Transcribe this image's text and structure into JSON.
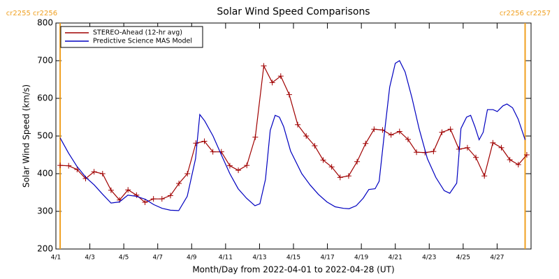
{
  "chart_data": {
    "type": "line",
    "title": "Solar Wind Speed Comparisons",
    "xlabel": "Month/Day from 2022-04-01 to 2022-04-28 (UT)",
    "ylabel": "Solar Wind Speed (km/s)",
    "xlim": [
      0,
      28
    ],
    "ylim": [
      200,
      800
    ],
    "xticks": [
      {
        "value": 0,
        "label": "4/1"
      },
      {
        "value": 2,
        "label": "4/3"
      },
      {
        "value": 4,
        "label": "4/5"
      },
      {
        "value": 6,
        "label": "4/7"
      },
      {
        "value": 8,
        "label": "4/9"
      },
      {
        "value": 10,
        "label": "4/11"
      },
      {
        "value": 12,
        "label": "4/13"
      },
      {
        "value": 14,
        "label": "4/15"
      },
      {
        "value": 16,
        "label": "4/17"
      },
      {
        "value": 18,
        "label": "4/19"
      },
      {
        "value": 20,
        "label": "4/21"
      },
      {
        "value": 22,
        "label": "4/23"
      },
      {
        "value": 24,
        "label": "4/25"
      },
      {
        "value": 26,
        "label": "4/27"
      }
    ],
    "yticks": [
      200,
      300,
      400,
      500,
      600,
      700,
      800
    ],
    "legend": "upper left",
    "markers": [
      {
        "x": 0.25,
        "label": "cr2255 cr2256",
        "color": "#f0a020"
      },
      {
        "x": 27.65,
        "label": "cr2256 cr2257",
        "color": "#f0a020"
      }
    ],
    "series": [
      {
        "name": "STEREO-Ahead (12-hr avg)",
        "color": "#a00000",
        "marker": "plus",
        "x": [
          0.25,
          0.75,
          1.25,
          1.75,
          2.25,
          2.75,
          3.25,
          3.75,
          4.25,
          4.75,
          5.25,
          5.75,
          6.25,
          6.75,
          7.25,
          7.75,
          8.25,
          8.75,
          9.25,
          9.75,
          10.25,
          10.75,
          11.25,
          11.75,
          12.25,
          12.75,
          13.25,
          13.75,
          14.25,
          14.75,
          15.25,
          15.75,
          16.25,
          16.75,
          17.25,
          17.75,
          18.25,
          18.75,
          19.25,
          19.75,
          20.25,
          20.75,
          21.25,
          21.75,
          22.25,
          22.75,
          23.25,
          23.75,
          24.25,
          24.75,
          25.25,
          25.75,
          26.25,
          26.75,
          27.25,
          27.75
        ],
        "values": [
          422,
          421,
          411,
          387,
          405,
          400,
          356,
          330,
          357,
          343,
          324,
          333,
          333,
          342,
          374,
          400,
          481,
          486,
          458,
          458,
          421,
          409,
          422,
          497,
          686,
          642,
          659,
          610,
          530,
          500,
          474,
          436,
          418,
          390,
          394,
          432,
          480,
          518,
          516,
          503,
          512,
          491,
          457,
          456,
          459,
          510,
          518,
          465,
          469,
          443,
          394,
          482,
          469,
          437,
          424,
          450
        ]
      },
      {
        "name": "Predictive Science MAS Model",
        "color": "#0000c0",
        "x": [
          0.25,
          0.74,
          1.23,
          1.77,
          2.26,
          2.76,
          3.25,
          3.74,
          4.24,
          4.73,
          5.27,
          5.76,
          6.26,
          6.75,
          7.24,
          7.74,
          8.23,
          8.48,
          8.77,
          9.26,
          9.75,
          10.25,
          10.74,
          11.23,
          11.73,
          12.02,
          12.35,
          12.63,
          12.92,
          13.17,
          13.42,
          13.83,
          14.49,
          14.98,
          15.47,
          15.97,
          16.46,
          16.95,
          17.28,
          17.7,
          18.11,
          18.44,
          18.81,
          19.05,
          19.34,
          19.67,
          20.0,
          20.25,
          20.58,
          20.99,
          21.4,
          21.89,
          22.39,
          22.88,
          23.21,
          23.62,
          23.87,
          24.2,
          24.44,
          24.69,
          24.94,
          25.18,
          25.43,
          25.76,
          26.01,
          26.34,
          26.58,
          26.91,
          27.24,
          27.65
        ],
        "values": [
          495,
          455,
          420,
          390,
          370,
          345,
          322,
          325,
          343,
          340,
          332,
          318,
          308,
          303,
          302,
          340,
          440,
          557,
          540,
          500,
          450,
          400,
          360,
          335,
          315,
          320,
          385,
          515,
          555,
          550,
          525,
          460,
          400,
          370,
          345,
          325,
          312,
          308,
          307,
          315,
          335,
          358,
          360,
          380,
          500,
          630,
          693,
          700,
          670,
          600,
          520,
          440,
          390,
          355,
          348,
          375,
          520,
          550,
          555,
          525,
          490,
          510,
          570,
          570,
          565,
          580,
          585,
          575,
          545,
          490
        ]
      }
    ]
  }
}
